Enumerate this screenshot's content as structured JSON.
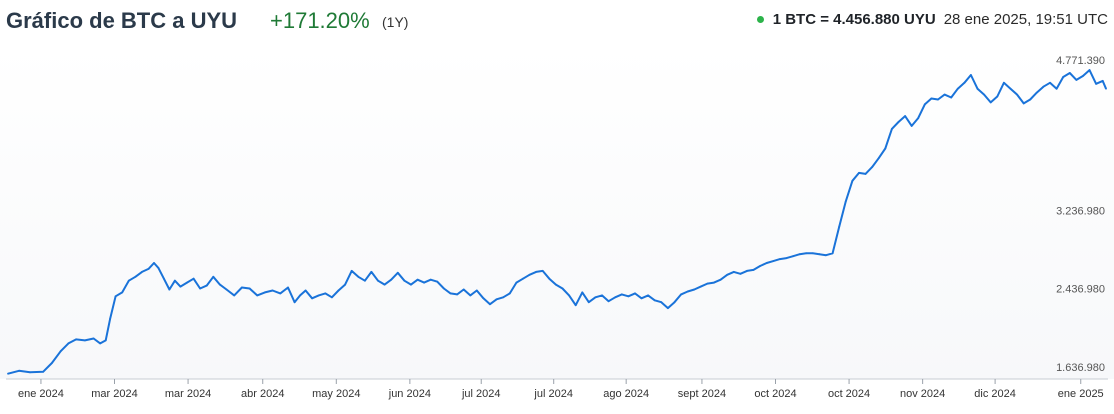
{
  "header": {
    "title": "Gráfico de BTC a UYU",
    "change": "+171.20%",
    "period": "(1Y)",
    "rate": "1 BTC = 4.456.880 UYU",
    "timestamp": "28 ene 2025, 19:51 UTC",
    "live_dot_color": "#2cb34a",
    "change_color": "#1f7a36"
  },
  "chart_data": {
    "type": "line",
    "title": "Gráfico de BTC a UYU",
    "xlabel": "",
    "ylabel": "",
    "ylim": [
      1636980,
      4771390
    ],
    "y_ticks": [
      {
        "value": 4771390,
        "label": "4.771.390"
      },
      {
        "value": 3236980,
        "label": "3.236.980"
      },
      {
        "value": 2436980,
        "label": "2.436.980"
      },
      {
        "value": 1636980,
        "label": "1.636.980"
      }
    ],
    "x_ticks": [
      {
        "t": 0.03,
        "label": "ene 2024"
      },
      {
        "t": 0.097,
        "label": "mar 2024"
      },
      {
        "t": 0.164,
        "label": "mar 2024"
      },
      {
        "t": 0.232,
        "label": "abr 2024"
      },
      {
        "t": 0.299,
        "label": "may 2024"
      },
      {
        "t": 0.366,
        "label": "jun 2024"
      },
      {
        "t": 0.431,
        "label": "jul 2024"
      },
      {
        "t": 0.497,
        "label": "jul 2024"
      },
      {
        "t": 0.563,
        "label": "ago 2024"
      },
      {
        "t": 0.632,
        "label": "sept 2024"
      },
      {
        "t": 0.699,
        "label": "oct 2024"
      },
      {
        "t": 0.766,
        "label": "oct 2024"
      },
      {
        "t": 0.833,
        "label": "nov 2024"
      },
      {
        "t": 0.899,
        "label": "dic 2024"
      },
      {
        "t": 0.977,
        "label": "ene 2025"
      }
    ],
    "series": [
      {
        "color": "#1a73d9",
        "points": [
          [
            0.0,
            1650000
          ],
          [
            0.01,
            1680000
          ],
          [
            0.02,
            1665000
          ],
          [
            0.032,
            1670000
          ],
          [
            0.04,
            1760000
          ],
          [
            0.048,
            1880000
          ],
          [
            0.055,
            1960000
          ],
          [
            0.062,
            2000000
          ],
          [
            0.07,
            1990000
          ],
          [
            0.078,
            2010000
          ],
          [
            0.084,
            1960000
          ],
          [
            0.089,
            1990000
          ],
          [
            0.093,
            2210000
          ],
          [
            0.098,
            2440000
          ],
          [
            0.104,
            2480000
          ],
          [
            0.11,
            2600000
          ],
          [
            0.116,
            2640000
          ],
          [
            0.122,
            2690000
          ],
          [
            0.128,
            2720000
          ],
          [
            0.133,
            2780000
          ],
          [
            0.137,
            2730000
          ],
          [
            0.142,
            2620000
          ],
          [
            0.147,
            2510000
          ],
          [
            0.152,
            2600000
          ],
          [
            0.157,
            2540000
          ],
          [
            0.163,
            2580000
          ],
          [
            0.169,
            2620000
          ],
          [
            0.175,
            2520000
          ],
          [
            0.181,
            2550000
          ],
          [
            0.187,
            2640000
          ],
          [
            0.193,
            2560000
          ],
          [
            0.199,
            2510000
          ],
          [
            0.206,
            2450000
          ],
          [
            0.213,
            2530000
          ],
          [
            0.22,
            2520000
          ],
          [
            0.227,
            2450000
          ],
          [
            0.234,
            2480000
          ],
          [
            0.241,
            2500000
          ],
          [
            0.248,
            2470000
          ],
          [
            0.255,
            2530000
          ],
          [
            0.261,
            2380000
          ],
          [
            0.266,
            2450000
          ],
          [
            0.271,
            2500000
          ],
          [
            0.277,
            2420000
          ],
          [
            0.283,
            2450000
          ],
          [
            0.289,
            2470000
          ],
          [
            0.295,
            2430000
          ],
          [
            0.301,
            2500000
          ],
          [
            0.307,
            2560000
          ],
          [
            0.313,
            2700000
          ],
          [
            0.319,
            2640000
          ],
          [
            0.325,
            2600000
          ],
          [
            0.331,
            2690000
          ],
          [
            0.337,
            2600000
          ],
          [
            0.343,
            2560000
          ],
          [
            0.349,
            2610000
          ],
          [
            0.355,
            2680000
          ],
          [
            0.361,
            2600000
          ],
          [
            0.367,
            2560000
          ],
          [
            0.373,
            2610000
          ],
          [
            0.379,
            2580000
          ],
          [
            0.385,
            2610000
          ],
          [
            0.391,
            2590000
          ],
          [
            0.397,
            2520000
          ],
          [
            0.403,
            2470000
          ],
          [
            0.409,
            2460000
          ],
          [
            0.415,
            2510000
          ],
          [
            0.421,
            2450000
          ],
          [
            0.427,
            2500000
          ],
          [
            0.433,
            2420000
          ],
          [
            0.439,
            2360000
          ],
          [
            0.445,
            2410000
          ],
          [
            0.451,
            2430000
          ],
          [
            0.457,
            2470000
          ],
          [
            0.463,
            2580000
          ],
          [
            0.469,
            2620000
          ],
          [
            0.475,
            2660000
          ],
          [
            0.481,
            2690000
          ],
          [
            0.487,
            2700000
          ],
          [
            0.493,
            2620000
          ],
          [
            0.499,
            2560000
          ],
          [
            0.505,
            2520000
          ],
          [
            0.511,
            2450000
          ],
          [
            0.517,
            2350000
          ],
          [
            0.523,
            2480000
          ],
          [
            0.529,
            2380000
          ],
          [
            0.535,
            2430000
          ],
          [
            0.541,
            2450000
          ],
          [
            0.547,
            2390000
          ],
          [
            0.553,
            2430000
          ],
          [
            0.559,
            2460000
          ],
          [
            0.565,
            2440000
          ],
          [
            0.571,
            2470000
          ],
          [
            0.577,
            2420000
          ],
          [
            0.583,
            2450000
          ],
          [
            0.589,
            2400000
          ],
          [
            0.595,
            2380000
          ],
          [
            0.601,
            2320000
          ],
          [
            0.607,
            2380000
          ],
          [
            0.613,
            2460000
          ],
          [
            0.619,
            2490000
          ],
          [
            0.625,
            2510000
          ],
          [
            0.631,
            2540000
          ],
          [
            0.637,
            2570000
          ],
          [
            0.643,
            2580000
          ],
          [
            0.649,
            2610000
          ],
          [
            0.655,
            2660000
          ],
          [
            0.661,
            2690000
          ],
          [
            0.667,
            2670000
          ],
          [
            0.673,
            2700000
          ],
          [
            0.679,
            2710000
          ],
          [
            0.685,
            2750000
          ],
          [
            0.691,
            2780000
          ],
          [
            0.697,
            2800000
          ],
          [
            0.703,
            2820000
          ],
          [
            0.709,
            2830000
          ],
          [
            0.715,
            2850000
          ],
          [
            0.721,
            2870000
          ],
          [
            0.727,
            2880000
          ],
          [
            0.733,
            2880000
          ],
          [
            0.739,
            2870000
          ],
          [
            0.745,
            2860000
          ],
          [
            0.751,
            2880000
          ],
          [
            0.757,
            3150000
          ],
          [
            0.763,
            3410000
          ],
          [
            0.769,
            3620000
          ],
          [
            0.775,
            3700000
          ],
          [
            0.781,
            3690000
          ],
          [
            0.787,
            3760000
          ],
          [
            0.793,
            3850000
          ],
          [
            0.799,
            3950000
          ],
          [
            0.805,
            4150000
          ],
          [
            0.811,
            4220000
          ],
          [
            0.817,
            4280000
          ],
          [
            0.823,
            4180000
          ],
          [
            0.829,
            4260000
          ],
          [
            0.835,
            4400000
          ],
          [
            0.841,
            4460000
          ],
          [
            0.847,
            4450000
          ],
          [
            0.853,
            4500000
          ],
          [
            0.859,
            4470000
          ],
          [
            0.865,
            4560000
          ],
          [
            0.871,
            4620000
          ],
          [
            0.877,
            4700000
          ],
          [
            0.883,
            4560000
          ],
          [
            0.889,
            4500000
          ],
          [
            0.895,
            4420000
          ],
          [
            0.901,
            4480000
          ],
          [
            0.907,
            4620000
          ],
          [
            0.913,
            4560000
          ],
          [
            0.919,
            4500000
          ],
          [
            0.925,
            4410000
          ],
          [
            0.931,
            4450000
          ],
          [
            0.937,
            4520000
          ],
          [
            0.943,
            4580000
          ],
          [
            0.949,
            4620000
          ],
          [
            0.955,
            4560000
          ],
          [
            0.961,
            4680000
          ],
          [
            0.967,
            4720000
          ],
          [
            0.973,
            4650000
          ],
          [
            0.979,
            4690000
          ],
          [
            0.985,
            4750000
          ],
          [
            0.991,
            4610000
          ],
          [
            0.997,
            4640000
          ],
          [
            1.0,
            4560000
          ]
        ]
      }
    ]
  }
}
